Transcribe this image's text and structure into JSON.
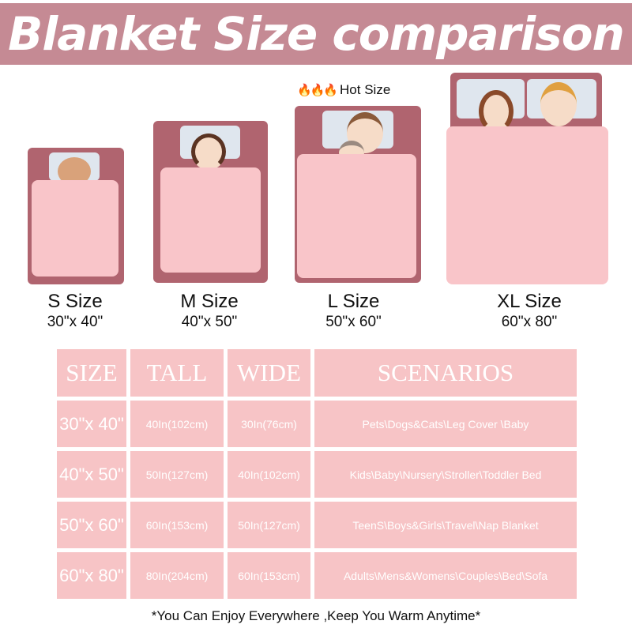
{
  "title": "Blanket Size comparison",
  "hot_label": "Hot Size",
  "hot_icon": "flame-icon",
  "colors": {
    "band": "#c58a94",
    "bed": "#b0646f",
    "blanket": "#f9c5c9",
    "table": "#f7c4c6"
  },
  "sizes": [
    {
      "name": "S  Size",
      "dims": "30\"x 40\""
    },
    {
      "name": "M  Size",
      "dims": "40\"x 50\""
    },
    {
      "name": "L  Size",
      "dims": "50\"x 60\""
    },
    {
      "name": "XL  Size",
      "dims": "60\"x 80\""
    }
  ],
  "table": {
    "headers": [
      "SIZE",
      "TALL",
      "WIDE",
      "SCENARIOS"
    ],
    "rows": [
      [
        "30\"x 40\"",
        "40In(102cm)",
        "30In(76cm)",
        "Pets\\Dogs&Cats\\Leg Cover \\Baby"
      ],
      [
        "40\"x 50\"",
        "50In(127cm)",
        "40In(102cm)",
        "Kids\\Baby\\Nursery\\Stroller\\Toddler Bed"
      ],
      [
        "50\"x 60\"",
        "60In(153cm)",
        "50In(127cm)",
        "TeenS\\Boys&Girls\\Travel\\Nap Blanket"
      ],
      [
        "60\"x 80\"",
        "80In(204cm)",
        "60In(153cm)",
        "Adults\\Mens&Womens\\Couples\\Bed\\Sofa"
      ]
    ]
  },
  "footer": "*You Can Enjoy Everywhere ,Keep You Warm Anytime*"
}
